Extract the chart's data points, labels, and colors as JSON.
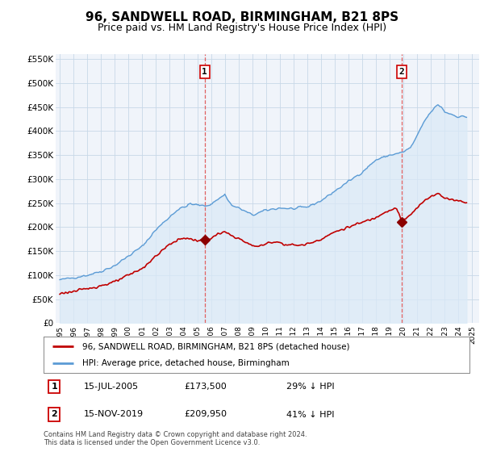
{
  "title": "96, SANDWELL ROAD, BIRMINGHAM, B21 8PS",
  "subtitle": "Price paid vs. HM Land Registry's House Price Index (HPI)",
  "title_fontsize": 11,
  "subtitle_fontsize": 9,
  "ylim": [
    0,
    560000
  ],
  "yticks": [
    0,
    50000,
    100000,
    150000,
    200000,
    250000,
    300000,
    350000,
    400000,
    450000,
    500000,
    550000
  ],
  "ytick_labels": [
    "£0",
    "£50K",
    "£100K",
    "£150K",
    "£200K",
    "£250K",
    "£300K",
    "£350K",
    "£400K",
    "£450K",
    "£500K",
    "£550K"
  ],
  "hpi_color": "#5b9bd5",
  "hpi_fill_color": "#daeaf7",
  "price_color": "#c00000",
  "marker_color": "#8b0000",
  "vline_color": "#e06060",
  "grid_color": "#c8d8e8",
  "background_color": "#ffffff",
  "chart_bg_color": "#f0f4fa",
  "legend_label_property": "96, SANDWELL ROAD, BIRMINGHAM, B21 8PS (detached house)",
  "legend_label_hpi": "HPI: Average price, detached house, Birmingham",
  "transaction1_label": "1",
  "transaction1_date": "15-JUL-2005",
  "transaction1_price": "£173,500",
  "transaction1_hpi": "29% ↓ HPI",
  "transaction1_year": 2005.54,
  "transaction1_value": 173500,
  "transaction2_label": "2",
  "transaction2_date": "15-NOV-2019",
  "transaction2_price": "£209,950",
  "transaction2_hpi": "41% ↓ HPI",
  "transaction2_year": 2019.87,
  "transaction2_value": 209950,
  "footer": "Contains HM Land Registry data © Crown copyright and database right 2024.\nThis data is licensed under the Open Government Licence v3.0.",
  "xlim_left": 1994.7,
  "xlim_right": 2025.5
}
